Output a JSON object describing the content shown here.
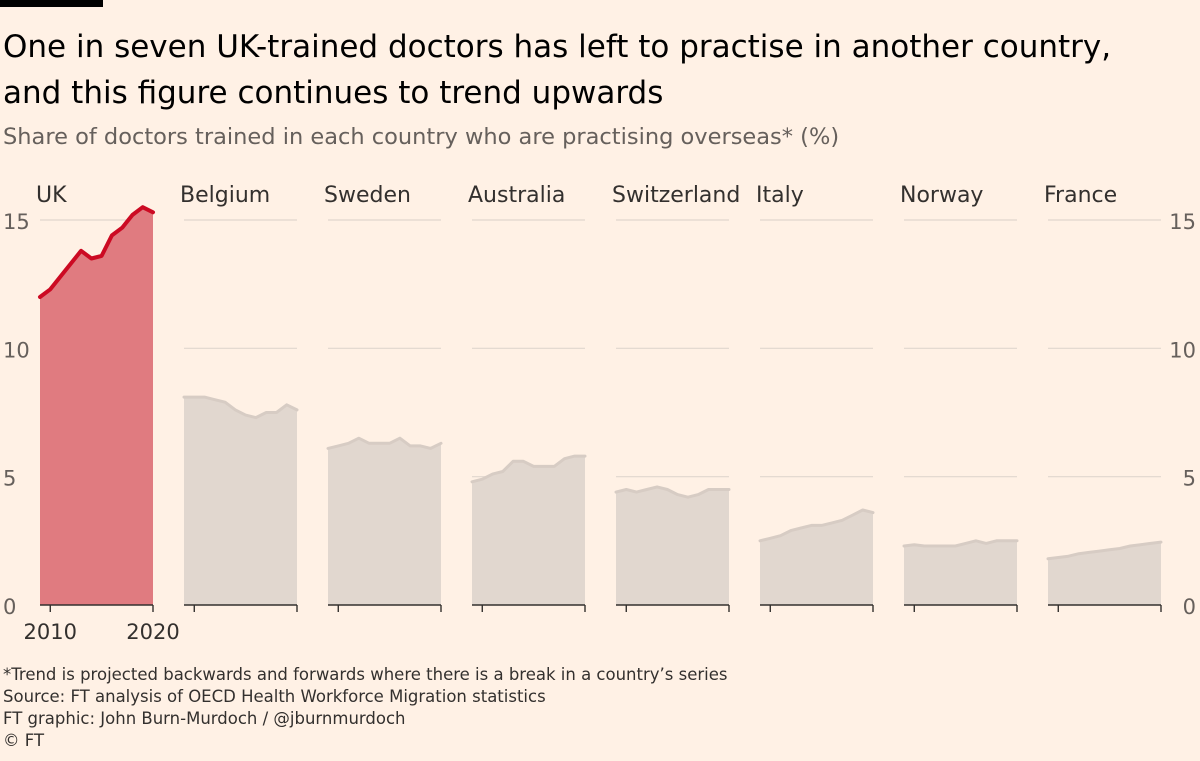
{
  "title_lines": [
    "One in seven UK-trained doctors has left to practise in another country,",
    "and this figure continues to trend upwards"
  ],
  "subtitle": "Share of doctors trained in each country who are practising overseas* (%)",
  "footnotes": {
    "note": "*Trend is projected backwards and forwards where there is a break in a country’s series",
    "source": "Source: FT analysis of OECD Health Workforce Migration statistics",
    "credit": "FT graphic: John Burn-Murdoch / @jburnmurdoch",
    "copyright": "© FT"
  },
  "colors": {
    "background": "#fff1e5",
    "highlight_fill": "#e07b80",
    "highlight_line": "#cc0a23",
    "other_fill": "#e1d7cf",
    "other_line": "#d7ccc4",
    "grid": "#e0d6ce",
    "axis": "#33302e",
    "tick_text": "#66605c"
  },
  "chart_data": {
    "type": "area",
    "layout": "small-multiples",
    "ylim": [
      0,
      15
    ],
    "yticks": [
      0,
      5,
      10,
      15
    ],
    "xlim": [
      2009,
      2020
    ],
    "xtick_labels": [
      "2010",
      "2020"
    ],
    "xtick_values": [
      2010,
      2020
    ],
    "x": [
      2009,
      2010,
      2011,
      2012,
      2013,
      2014,
      2015,
      2016,
      2017,
      2018,
      2019,
      2020
    ],
    "series": [
      {
        "name": "UK",
        "highlight": true,
        "values": [
          12.0,
          12.3,
          12.8,
          13.3,
          13.8,
          13.5,
          13.6,
          14.4,
          14.7,
          15.2,
          15.5,
          15.3
        ]
      },
      {
        "name": "Belgium",
        "highlight": false,
        "values": [
          8.1,
          8.1,
          8.1,
          8.0,
          7.9,
          7.6,
          7.4,
          7.3,
          7.5,
          7.5,
          7.8,
          7.6
        ]
      },
      {
        "name": "Sweden",
        "highlight": false,
        "values": [
          6.1,
          6.2,
          6.3,
          6.5,
          6.3,
          6.3,
          6.3,
          6.5,
          6.2,
          6.2,
          6.1,
          6.3
        ]
      },
      {
        "name": "Australia",
        "highlight": false,
        "values": [
          4.8,
          4.9,
          5.1,
          5.2,
          5.6,
          5.6,
          5.4,
          5.4,
          5.4,
          5.7,
          5.8,
          5.8
        ]
      },
      {
        "name": "Switzerland",
        "highlight": false,
        "values": [
          4.4,
          4.5,
          4.4,
          4.5,
          4.6,
          4.5,
          4.3,
          4.2,
          4.3,
          4.5,
          4.5,
          4.5
        ]
      },
      {
        "name": "Italy",
        "highlight": false,
        "values": [
          2.5,
          2.6,
          2.7,
          2.9,
          3.0,
          3.1,
          3.1,
          3.2,
          3.3,
          3.5,
          3.7,
          3.6
        ]
      },
      {
        "name": "Norway",
        "highlight": false,
        "values": [
          2.3,
          2.35,
          2.3,
          2.3,
          2.3,
          2.3,
          2.4,
          2.5,
          2.4,
          2.5,
          2.5,
          2.5
        ]
      },
      {
        "name": "France",
        "highlight": false,
        "values": [
          1.8,
          1.85,
          1.9,
          2.0,
          2.05,
          2.1,
          2.15,
          2.2,
          2.3,
          2.35,
          2.4,
          2.45
        ]
      }
    ]
  }
}
